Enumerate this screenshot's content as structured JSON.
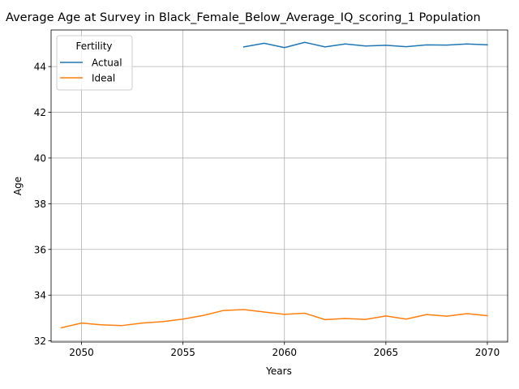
{
  "chart_data": {
    "type": "line",
    "title": "Average Age at Survey in Black_Female_Below_Average_IQ_scoring_1 Population",
    "xlabel": "Years",
    "ylabel": "Age",
    "xlim": [
      2048.5,
      2071
    ],
    "ylim": [
      31.95,
      45.6
    ],
    "xticks": [
      2050,
      2055,
      2060,
      2065,
      2070
    ],
    "yticks": [
      32,
      34,
      36,
      38,
      40,
      42,
      44
    ],
    "grid": true,
    "legend": {
      "title": "Fertility",
      "placement": "top-left"
    },
    "series": [
      {
        "name": "Actual",
        "color": "#1f77b4",
        "x": [
          2058,
          2059,
          2060,
          2061,
          2062,
          2063,
          2064,
          2065,
          2066,
          2067,
          2068,
          2069,
          2070
        ],
        "y": [
          44.86,
          45.02,
          44.83,
          45.06,
          44.86,
          44.99,
          44.9,
          44.93,
          44.87,
          44.95,
          44.94,
          44.99,
          44.95
        ]
      },
      {
        "name": "Ideal",
        "color": "#ff7f0e",
        "x": [
          2049,
          2050,
          2051,
          2052,
          2053,
          2054,
          2055,
          2056,
          2057,
          2058,
          2059,
          2060,
          2061,
          2062,
          2063,
          2064,
          2065,
          2066,
          2067,
          2068,
          2069,
          2070
        ],
        "y": [
          32.57,
          32.78,
          32.7,
          32.67,
          32.78,
          32.84,
          32.95,
          33.11,
          33.33,
          33.37,
          33.26,
          33.16,
          33.21,
          32.93,
          32.98,
          32.94,
          33.09,
          32.95,
          33.15,
          33.08,
          33.19,
          33.1
        ]
      }
    ]
  }
}
